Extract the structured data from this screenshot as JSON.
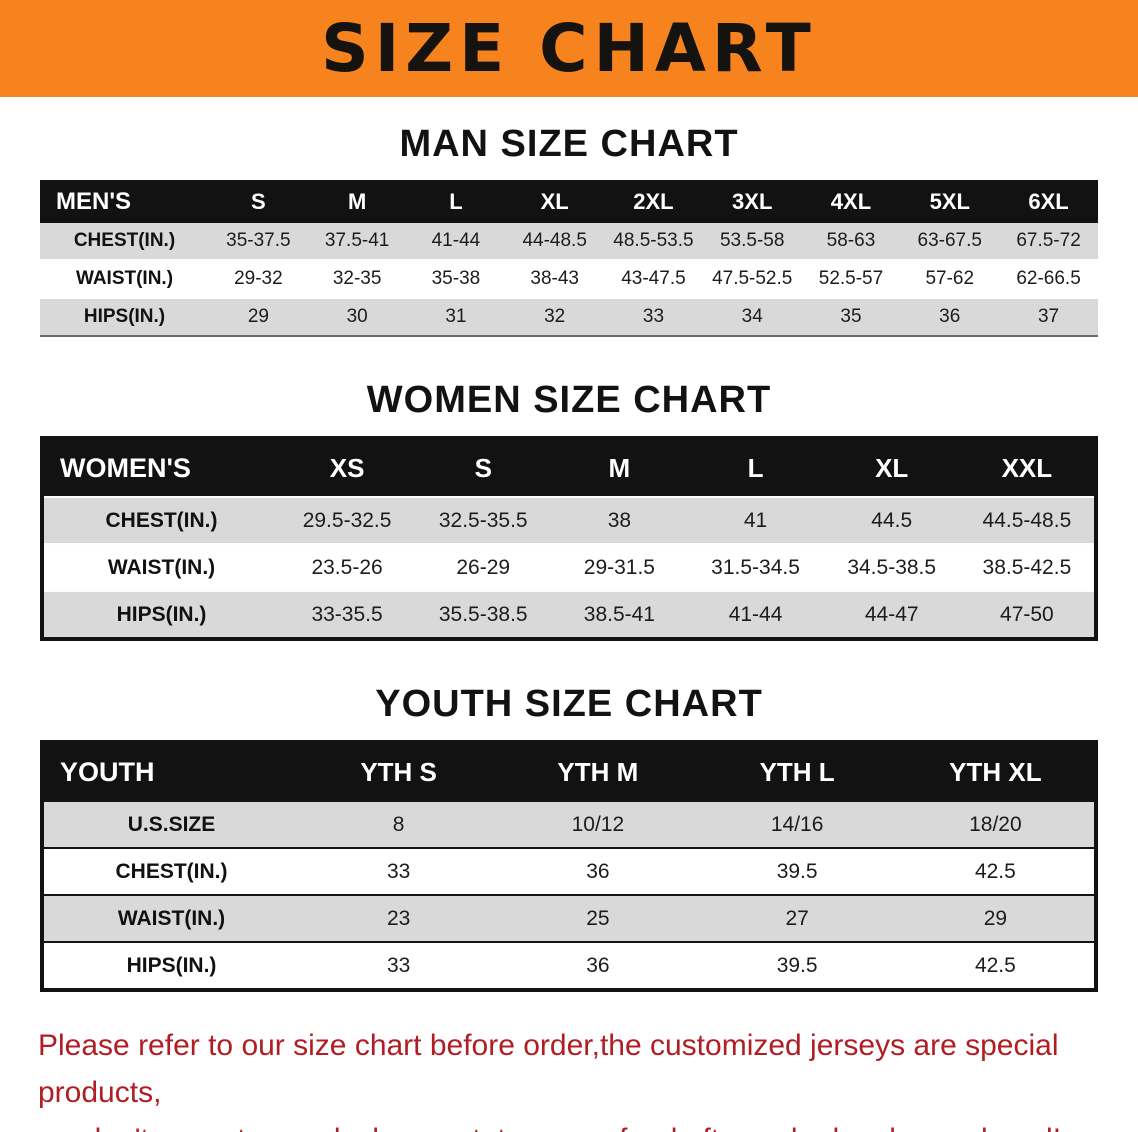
{
  "banner": {
    "title": "SIZE CHART",
    "bg_color": "#F6831D"
  },
  "chart_data": [
    {
      "type": "table",
      "title": "MAN SIZE CHART",
      "header": [
        "MEN'S",
        "S",
        "M",
        "L",
        "XL",
        "2XL",
        "3XL",
        "4XL",
        "5XL",
        "6XL"
      ],
      "rows": [
        [
          "CHEST(IN.)",
          "35-37.5",
          "37.5-41",
          "41-44",
          "44-48.5",
          "48.5-53.5",
          "53.5-58",
          "58-63",
          "63-67.5",
          "67.5-72"
        ],
        [
          "WAIST(IN.)",
          "29-32",
          "32-35",
          "35-38",
          "38-43",
          "43-47.5",
          "47.5-52.5",
          "52.5-57",
          "57-62",
          "62-66.5"
        ],
        [
          "HIPS(IN.)",
          "29",
          "30",
          "31",
          "32",
          "33",
          "34",
          "35",
          "36",
          "37"
        ]
      ]
    },
    {
      "type": "table",
      "title": "WOMEN SIZE CHART",
      "header": [
        "WOMEN'S",
        "XS",
        "S",
        "M",
        "L",
        "XL",
        "XXL"
      ],
      "rows": [
        [
          "CHEST(IN.)",
          "29.5-32.5",
          "32.5-35.5",
          "38",
          "41",
          "44.5",
          "44.5-48.5"
        ],
        [
          "WAIST(IN.)",
          "23.5-26",
          "26-29",
          "29-31.5",
          "31.5-34.5",
          "34.5-38.5",
          "38.5-42.5"
        ],
        [
          "HIPS(IN.)",
          "33-35.5",
          "35.5-38.5",
          "38.5-41",
          "41-44",
          "44-47",
          "47-50"
        ]
      ]
    },
    {
      "type": "table",
      "title": "YOUTH SIZE CHART",
      "header": [
        "YOUTH",
        "YTH S",
        "YTH M",
        "YTH L",
        "YTH XL"
      ],
      "rows": [
        [
          "U.S.SIZE",
          "8",
          "10/12",
          "14/16",
          "18/20"
        ],
        [
          "CHEST(IN.)",
          "33",
          "36",
          "39.5",
          "42.5"
        ],
        [
          "WAIST(IN.)",
          "23",
          "25",
          "27",
          "29"
        ],
        [
          "HIPS(IN.)",
          "33",
          "36",
          "39.5",
          "42.5"
        ]
      ]
    }
  ],
  "disclaimer": {
    "line1": "Please refer to our size chart before order,the customized jerseys are special products,",
    "line2": "we don't accept cancel, change, teturn or refund after order has been placed!",
    "color": "#B01E24"
  }
}
